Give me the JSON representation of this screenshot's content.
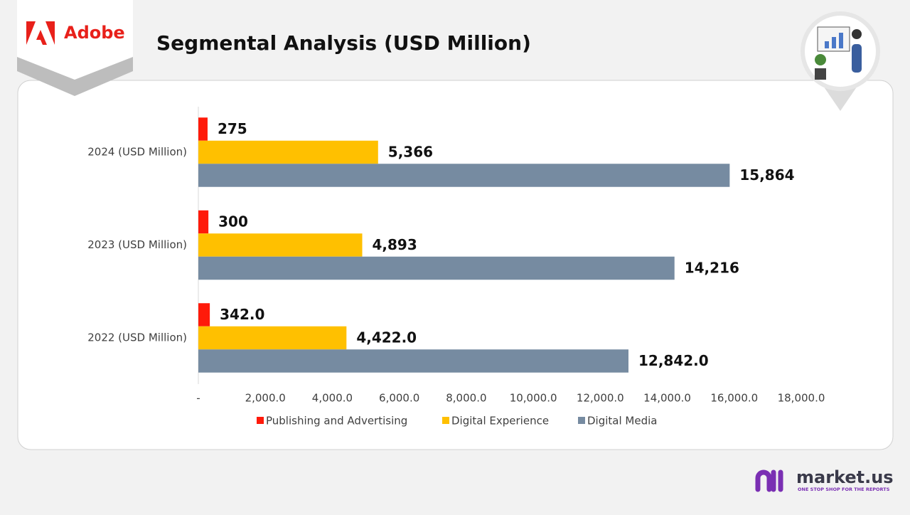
{
  "brand": "Adobe",
  "footer": {
    "logo": "market.us",
    "tagline": "ONE STOP SHOP FOR THE REPORTS"
  },
  "chart_data": {
    "type": "hbar",
    "title": "Segmental Analysis (USD Million)",
    "categories": [
      "2024 (USD Million)",
      "2023 (USD Million)",
      "2022 (USD Million)"
    ],
    "series": [
      {
        "name": "Publishing and Advertising",
        "color": "#ff1a0a",
        "values": [
          275,
          300,
          342
        ],
        "value_labels": [
          "275",
          "300",
          "342.0"
        ]
      },
      {
        "name": "Digital Experience",
        "color": "#ffc000",
        "values": [
          5366,
          4893,
          4422
        ],
        "value_labels": [
          "5,366",
          "4,893",
          "4,422.0"
        ]
      },
      {
        "name": "Digital Media",
        "color": "#768ba1",
        "values": [
          15864,
          14216,
          12842
        ],
        "value_labels": [
          "15,864",
          "14,216",
          "12,842.0"
        ]
      }
    ],
    "xlim": [
      0,
      18000
    ],
    "xticks": [
      {
        "value": 0,
        "label": "-"
      },
      {
        "value": 2000,
        "label": "2,000.0"
      },
      {
        "value": 4000,
        "label": "4,000.0"
      },
      {
        "value": 6000,
        "label": "6,000.0"
      },
      {
        "value": 8000,
        "label": "8,000.0"
      },
      {
        "value": 10000,
        "label": "10,000.0"
      },
      {
        "value": 12000,
        "label": "12,000.0"
      },
      {
        "value": 14000,
        "label": "14,000.0"
      },
      {
        "value": 16000,
        "label": "16,000.0"
      },
      {
        "value": 18000,
        "label": "18,000.0"
      }
    ],
    "legend": "bottom"
  }
}
